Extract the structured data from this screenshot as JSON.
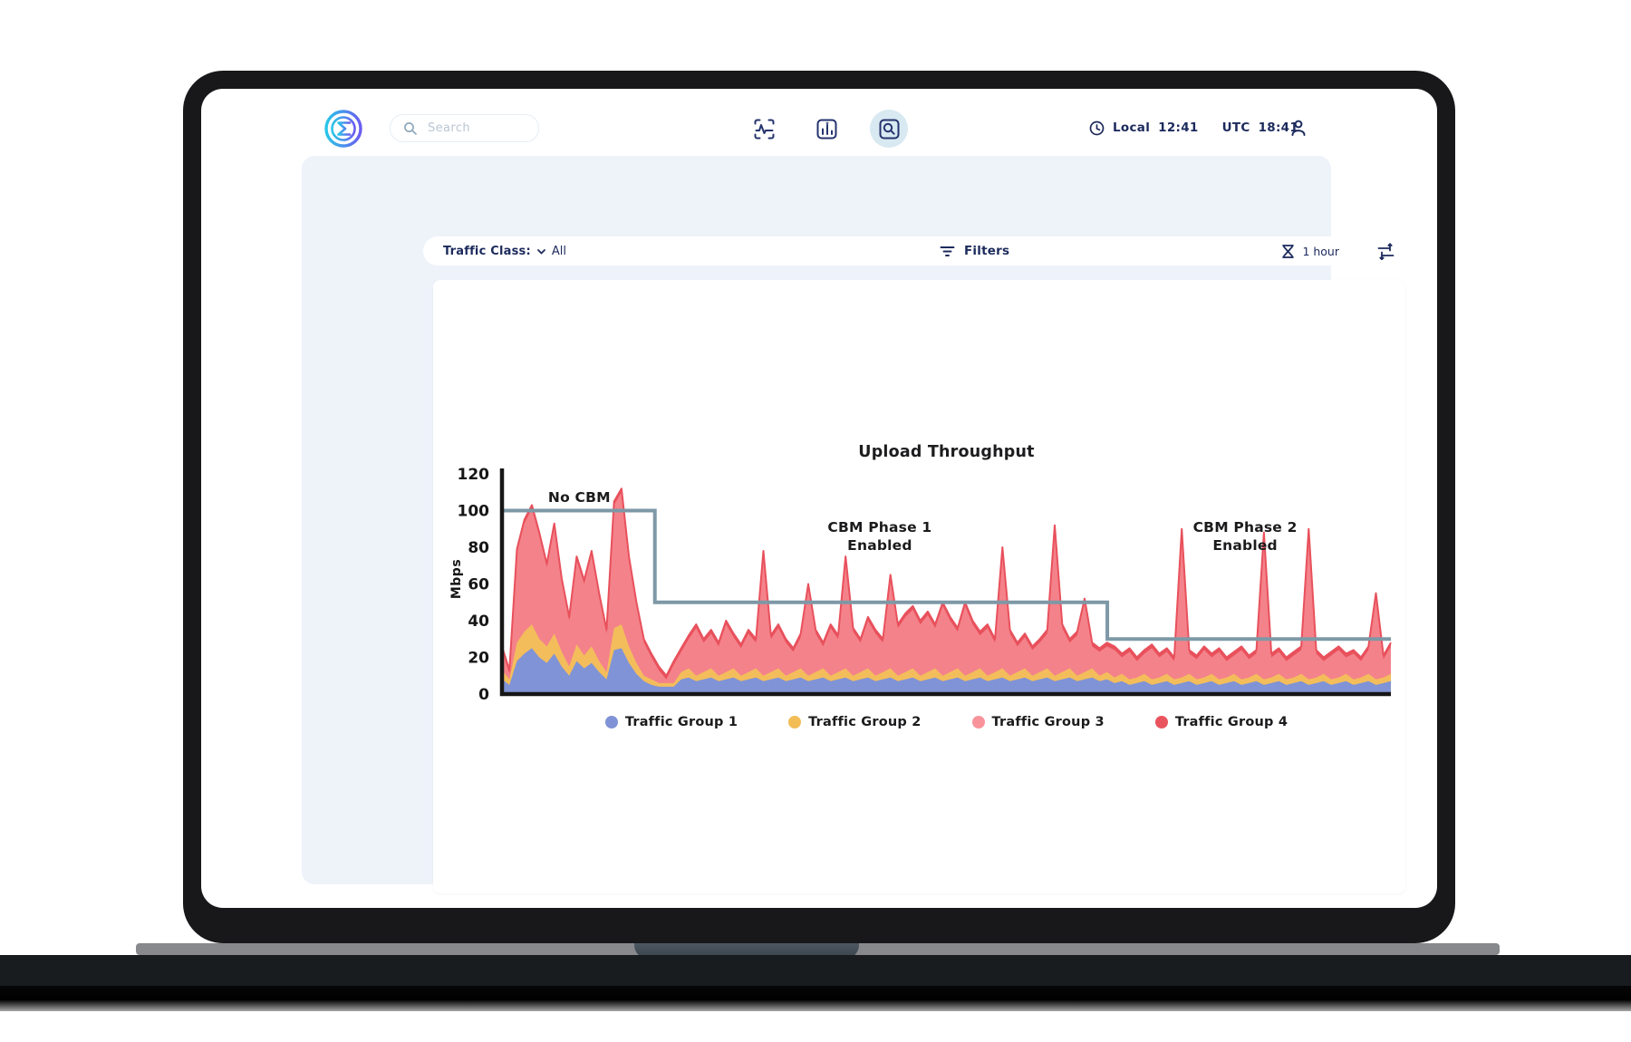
{
  "topbar": {
    "search_placeholder": "Search",
    "time": {
      "local_label": "Local",
      "local_value": "12:41",
      "utc_label": "UTC",
      "utc_value": "18:41"
    }
  },
  "filterbar": {
    "traffic_class_label": "Traffic Class:",
    "traffic_class_value": "All",
    "filters_label": "Filters",
    "duration_label": "1 hour"
  },
  "icons": {
    "logo": "sigma-ring-logo",
    "nav": [
      "waveform-frame-icon",
      "bar-chart-icon",
      "search-panel-icon"
    ],
    "topbar_right": [
      "clock-icon",
      "person-icon"
    ],
    "filterbar": [
      "chevron-down-icon",
      "funnel-icon",
      "hourglass-icon",
      "sliders-icon"
    ]
  },
  "colors": {
    "nav_icon": "#25336e",
    "nav_active_bg": "#d8e9f2",
    "panel_bg": "#eef3fa",
    "ui_text": "#1c2a5c",
    "logo_gradient": [
      "#29c6e8",
      "#6a5cf0"
    ]
  },
  "chart_data": {
    "type": "area",
    "stacked": true,
    "title": "Upload Throughput",
    "ylabel": "Mbps",
    "ylim": [
      0,
      120
    ],
    "yticks": [
      0,
      20,
      40,
      60,
      80,
      100,
      120
    ],
    "grid": false,
    "legend_position": "bottom",
    "axis_color": "#161616",
    "outline_color": "#e8515c",
    "series": [
      {
        "name": "Traffic Group 1",
        "color": "#8093d6",
        "fill": "#8093d6",
        "values": [
          8,
          5,
          18,
          22,
          25,
          20,
          17,
          22,
          15,
          10,
          18,
          14,
          17,
          12,
          8,
          24,
          25,
          17,
          11,
          7,
          5,
          4,
          4,
          4,
          8,
          9,
          7,
          8,
          9,
          7,
          8,
          9,
          7,
          8,
          9,
          7,
          8,
          9,
          7,
          8,
          9,
          7,
          8,
          9,
          7,
          8,
          9,
          7,
          8,
          9,
          7,
          8,
          9,
          7,
          8,
          9,
          7,
          8,
          9,
          7,
          8,
          9,
          7,
          8,
          9,
          7,
          8,
          9,
          7,
          8,
          9,
          7,
          8,
          9,
          7,
          8,
          9,
          7,
          8,
          9,
          7,
          8,
          6,
          7,
          5,
          6,
          7,
          5,
          6,
          7,
          5,
          6,
          7,
          5,
          6,
          7,
          5,
          6,
          7,
          5,
          6,
          7,
          5,
          6,
          7,
          5,
          6,
          7,
          5,
          6,
          7,
          5,
          6,
          7,
          5,
          6,
          7,
          5,
          6,
          7
        ]
      },
      {
        "name": "Traffic Group 2",
        "color": "#f3bd56",
        "fill": "#f3bd5c",
        "values": [
          5,
          3,
          10,
          12,
          13,
          10,
          9,
          11,
          8,
          5,
          9,
          7,
          9,
          6,
          4,
          12,
          13,
          9,
          6,
          3,
          3,
          2,
          2,
          2,
          4,
          5,
          3,
          4,
          5,
          3,
          4,
          5,
          3,
          4,
          5,
          3,
          4,
          5,
          3,
          4,
          5,
          3,
          4,
          5,
          3,
          4,
          5,
          3,
          4,
          5,
          3,
          4,
          5,
          3,
          4,
          5,
          3,
          4,
          5,
          3,
          4,
          5,
          3,
          4,
          5,
          3,
          4,
          5,
          3,
          4,
          5,
          3,
          4,
          5,
          3,
          4,
          5,
          3,
          4,
          5,
          3,
          4,
          3,
          4,
          3,
          3,
          4,
          3,
          3,
          4,
          3,
          3,
          4,
          3,
          3,
          4,
          3,
          3,
          4,
          3,
          3,
          4,
          3,
          3,
          4,
          3,
          3,
          4,
          3,
          3,
          4,
          3,
          3,
          4,
          3,
          3,
          4,
          3,
          3,
          4
        ]
      },
      {
        "name": "Traffic Group 3",
        "color": "#f8939b",
        "fill": "#f4828a",
        "values": [
          11,
          3,
          49,
          59,
          63,
          56,
          43,
          58,
          38,
          25,
          46,
          39,
          50,
          35,
          21,
          67,
          72,
          47,
          31,
          18,
          12,
          7,
          2,
          10,
          11,
          16,
          26,
          16,
          19,
          16,
          26,
          17,
          15,
          21,
          14,
          66,
          18,
          22,
          18,
          11,
          17,
          48,
          21,
          12,
          26,
          18,
          59,
          24,
          16,
          26,
          23,
          16,
          49,
          26,
          30,
          32,
          28,
          31,
          22,
          38,
          28,
          20,
          38,
          26,
          18,
          26,
          16,
          64,
          23,
          14,
          17,
          14,
          16,
          19,
          80,
          24,
          14,
          22,
          38,
          12,
          13,
          14,
          15,
          9,
          15,
          9,
          11,
          17,
          11,
          12,
          10,
          79,
          11,
          11,
          15,
          9,
          15,
          9,
          10,
          16,
          10,
          11,
          78,
          11,
          12,
          10,
          12,
          13,
          80,
          13,
          7,
          13,
          15,
          9,
          14,
          9,
          13,
          45,
          10,
          15
        ]
      },
      {
        "name": "Traffic Group 4",
        "color": "#ea545e",
        "fill": "#e8515c",
        "values": [
          2,
          2,
          2,
          2,
          2,
          2,
          2,
          2,
          2,
          2,
          2,
          2,
          2,
          2,
          2,
          2,
          2,
          2,
          2,
          2,
          2,
          2,
          2,
          2,
          2,
          2,
          2,
          2,
          2,
          2,
          2,
          2,
          2,
          2,
          2,
          2,
          2,
          2,
          2,
          2,
          2,
          2,
          2,
          2,
          2,
          2,
          2,
          2,
          2,
          2,
          2,
          2,
          2,
          2,
          2,
          2,
          2,
          2,
          2,
          2,
          2,
          2,
          2,
          2,
          2,
          2,
          2,
          2,
          2,
          2,
          2,
          2,
          2,
          2,
          2,
          2,
          2,
          2,
          2,
          2,
          2,
          2,
          2,
          2,
          2,
          2,
          2,
          2,
          2,
          2,
          2,
          2,
          2,
          2,
          2,
          2,
          2,
          2,
          2,
          2,
          2,
          2,
          2,
          2,
          2,
          2,
          2,
          2,
          2,
          2,
          2,
          2,
          2,
          2,
          2,
          2,
          2,
          2,
          2,
          2
        ]
      }
    ],
    "limit_line": {
      "color": "#7e98a6",
      "width": 4,
      "steps": [
        {
          "from": 0,
          "to": 0.172,
          "value": 100
        },
        {
          "from": 0.172,
          "to": 0.681,
          "value": 50
        },
        {
          "from": 0.681,
          "to": 1,
          "value": 30
        }
      ]
    },
    "annotations": [
      {
        "lines": [
          "No CBM"
        ],
        "x_frac": 0.087,
        "y_value": 107
      },
      {
        "lines": [
          "CBM Phase 1",
          "Enabled"
        ],
        "x_frac": 0.425,
        "y_value": 86
      },
      {
        "lines": [
          "CBM Phase 2",
          "Enabled"
        ],
        "x_frac": 0.836,
        "y_value": 86
      }
    ]
  }
}
